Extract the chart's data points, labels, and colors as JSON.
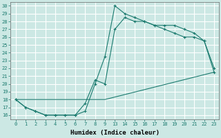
{
  "xlabel": "Humidex (Indice chaleur)",
  "bg_color": "#cce8e4",
  "grid_color": "#ffffff",
  "line_color": "#1a7a6e",
  "xlim": [
    -0.5,
    23.5
  ],
  "ylim": [
    15.5,
    30.5
  ],
  "xticks": [
    0,
    1,
    2,
    3,
    4,
    5,
    6,
    7,
    8,
    9,
    13,
    14,
    15,
    16,
    17,
    18,
    19,
    20,
    21,
    22,
    23
  ],
  "yticks": [
    16,
    17,
    18,
    19,
    20,
    21,
    22,
    23,
    24,
    25,
    26,
    27,
    28,
    29,
    30
  ],
  "line1_x": [
    0,
    1,
    2,
    3,
    4,
    5,
    6,
    7,
    8,
    9,
    13,
    14,
    15,
    16,
    17,
    18,
    19,
    20,
    21,
    22,
    23
  ],
  "line1_y": [
    18,
    17,
    16.5,
    16,
    16,
    16,
    16,
    16.5,
    20,
    23.5,
    30,
    29,
    28.5,
    28,
    27.5,
    27.5,
    27.5,
    27,
    26.5,
    25.5,
    21.5
  ],
  "line2_x": [
    0,
    1,
    2,
    3,
    4,
    5,
    6,
    7,
    8,
    9,
    13,
    14,
    15,
    16,
    17,
    18,
    19,
    20,
    21,
    22,
    23
  ],
  "line2_y": [
    18,
    17,
    16.5,
    16,
    16,
    16,
    16,
    17.5,
    20.5,
    20,
    27,
    28.5,
    28,
    28,
    27.5,
    27,
    26.5,
    26,
    26,
    25.5,
    22
  ],
  "line3_x": [
    0,
    9,
    23
  ],
  "line3_y": [
    18,
    18,
    21.5
  ],
  "figsize": [
    3.2,
    2.0
  ],
  "dpi": 100
}
